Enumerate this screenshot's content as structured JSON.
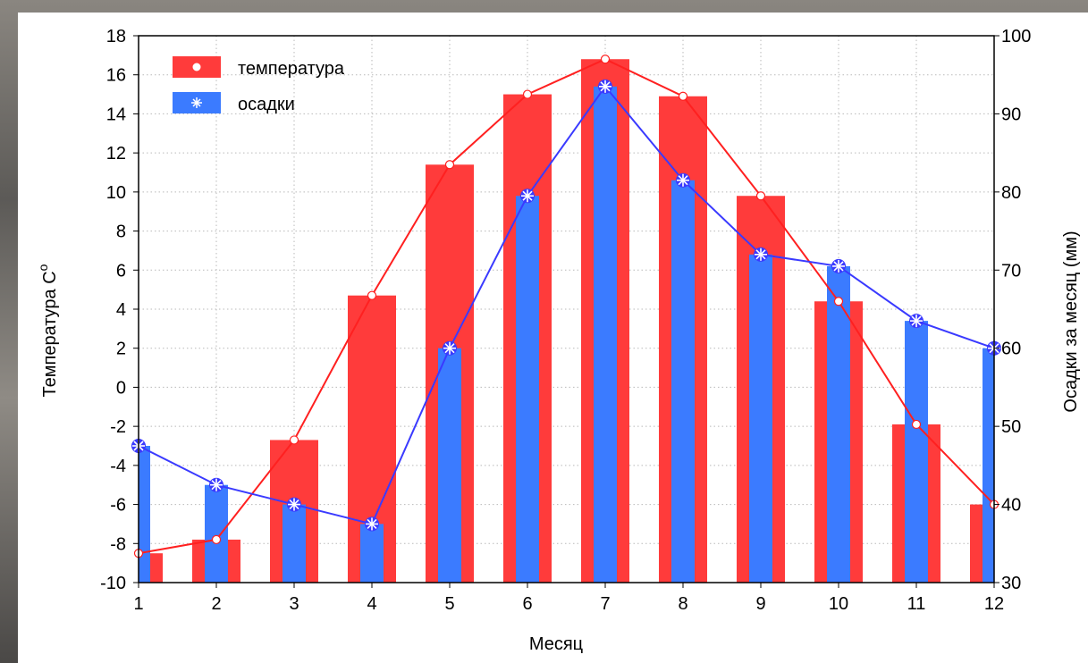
{
  "chart_data": {
    "type": "bar",
    "xlabel": "Месяц",
    "ylabel_left": "Температура C",
    "ylabel_left_sup": "o",
    "ylabel_right": "Осадки за месяц (мм)",
    "categories": [
      "1",
      "2",
      "3",
      "4",
      "5",
      "6",
      "7",
      "8",
      "9",
      "10",
      "11",
      "12"
    ],
    "ylim_left": [
      -10,
      18
    ],
    "ylim_right": [
      30,
      100
    ],
    "yticks_left": [
      "-10",
      "-8",
      "-6",
      "-4",
      "-2",
      "0",
      "2",
      "4",
      "6",
      "8",
      "10",
      "12",
      "14",
      "16",
      "18"
    ],
    "yticks_right": [
      "30",
      "40",
      "50",
      "60",
      "70",
      "80",
      "90",
      "100"
    ],
    "grid": true,
    "legend_position": "top-left",
    "series": [
      {
        "name": "температура",
        "axis": "left",
        "color": "#ff3b3b",
        "values": [
          -8.5,
          -7.8,
          -2.7,
          4.7,
          11.4,
          15.0,
          16.8,
          14.9,
          9.8,
          4.4,
          -1.9,
          -6.0
        ]
      },
      {
        "name": "осадки",
        "axis": "right",
        "color": "#3b7bff",
        "values": [
          47.5,
          42.5,
          40.0,
          37.5,
          60.0,
          79.5,
          93.5,
          81.5,
          72.0,
          70.5,
          63.5,
          60.0
        ]
      }
    ]
  }
}
